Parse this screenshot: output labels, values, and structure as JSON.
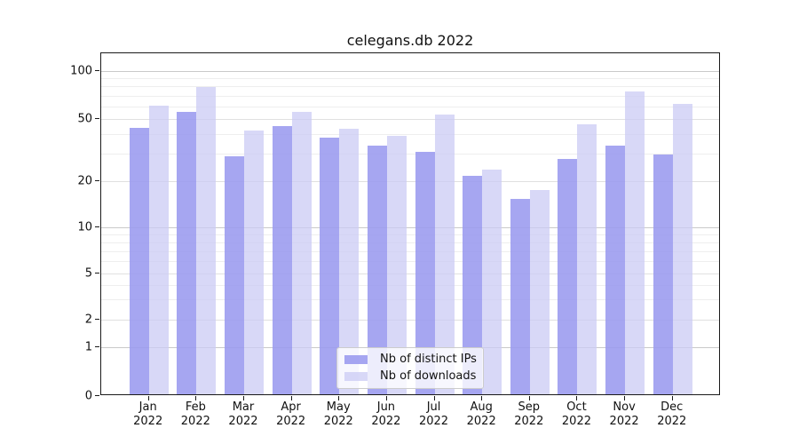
{
  "chart_data": {
    "type": "bar",
    "title": "celegans.db 2022",
    "categories": [
      "Jan 2022",
      "Feb 2022",
      "Mar 2022",
      "Apr 2022",
      "May 2022",
      "Jun 2022",
      "Jul 2022",
      "Aug 2022",
      "Sep 2022",
      "Oct 2022",
      "Nov 2022",
      "Dec 2022"
    ],
    "series": [
      {
        "name": "Nb of distinct IPs",
        "color": "#9a9aef",
        "values": [
          43,
          54,
          28,
          44,
          37,
          33,
          30,
          21,
          15,
          27,
          33,
          29
        ]
      },
      {
        "name": "Nb of downloads",
        "color": "#cbcbf4",
        "values": [
          59,
          77,
          41,
          54,
          42,
          38,
          52,
          23,
          17,
          45,
          73,
          61
        ]
      }
    ],
    "xlabel": "",
    "ylabel": "",
    "yscale": "symlog",
    "ylim": [
      0,
      130
    ],
    "yticks": [
      0,
      1,
      2,
      5,
      10,
      20,
      50,
      100
    ],
    "minor_gridlines": [
      3,
      4,
      6,
      7,
      8,
      9,
      30,
      40,
      60,
      70,
      80,
      90
    ],
    "grid": true,
    "legend_position": "lower center"
  },
  "colors": {
    "grid_decade": "#c9c9c9",
    "grid_major": "#e0e0e0",
    "grid_minor": "#eeeeee",
    "spine": "#1a1a1a"
  }
}
